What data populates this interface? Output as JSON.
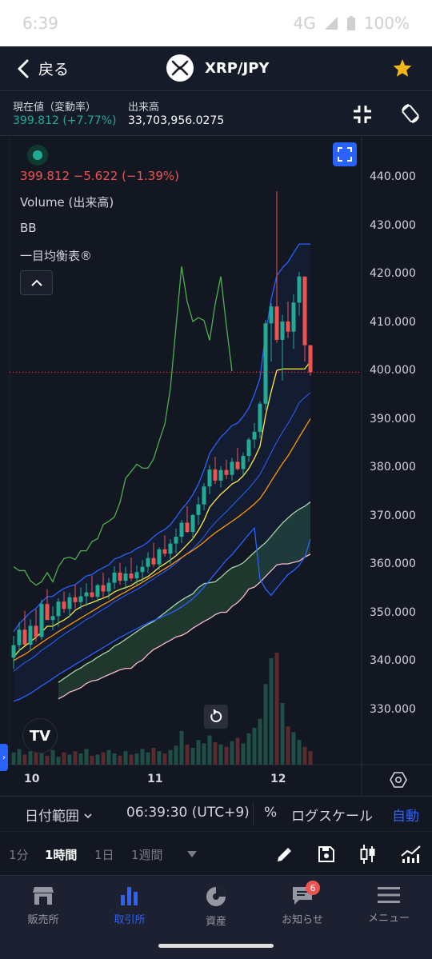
{
  "status_bar": {
    "time": "6:39",
    "network": "4G",
    "battery": "100%"
  },
  "header": {
    "back_label": "戻る",
    "pair": "XRP/JPY",
    "favorite": true
  },
  "info": {
    "price_label": "現在値（変動率）",
    "price_value": "399.812 (+7.77%)",
    "volume_label": "出来高",
    "volume_value": "33,703,956.0275"
  },
  "legend": {
    "price_change": "399.812  −5.622 (−1.39%)",
    "volume": "Volume (出来高)",
    "bb": "BB",
    "ichimoku": "一目均衡表®"
  },
  "chart_data": {
    "type": "candlestick",
    "symbol": "XRP/JPY",
    "interval": "1時間",
    "last_price": 399.812,
    "ylim": [
      323,
      446
    ],
    "yticks": [
      "440.000",
      "430.000",
      "420.000",
      "410.000",
      "400.000",
      "390.000",
      "380.000",
      "370.000",
      "360.000",
      "350.000",
      "340.000",
      "330.000"
    ],
    "x_labels": [
      "10",
      "11",
      "12"
    ],
    "colors": {
      "up": "#22ab94",
      "down": "#ef5350",
      "bb_band": "#2962ff",
      "ma": "#ff9800",
      "tenkan": "#ffeb3b",
      "chikou": "#4caf50",
      "span_a": "#a5d6a7",
      "span_b": "#f8bbd0"
    },
    "candles": [
      [
        340.8,
        345.3,
        338.5,
        343.4
      ],
      [
        343.4,
        348.1,
        341.9,
        346.6
      ],
      [
        346.6,
        350.5,
        343.3,
        343.5
      ],
      [
        343.5,
        348.7,
        342.2,
        347.4
      ],
      [
        347.4,
        350.8,
        344.1,
        345.1
      ],
      [
        345.1,
        352.8,
        344.5,
        351.9
      ],
      [
        351.9,
        355.0,
        348.6,
        348.6
      ],
      [
        348.6,
        351.4,
        346.5,
        349.4
      ],
      [
        349.4,
        353.1,
        347.2,
        352.4
      ],
      [
        352.4,
        354.5,
        350.1,
        350.9
      ],
      [
        350.9,
        354.2,
        349.2,
        353.3
      ],
      [
        353.3,
        355.9,
        351.0,
        352.3
      ],
      [
        352.3,
        355.3,
        350.8,
        353.5
      ],
      [
        353.5,
        356.2,
        351.5,
        354.3
      ],
      [
        354.3,
        357.8,
        353.1,
        353.4
      ],
      [
        353.4,
        356.1,
        352.3,
        355.8
      ],
      [
        355.8,
        358.4,
        353.1,
        354.5
      ],
      [
        354.5,
        357.3,
        352.9,
        356.3
      ],
      [
        356.3,
        359.7,
        355.0,
        358.4
      ],
      [
        358.4,
        360.4,
        355.9,
        356.7
      ],
      [
        356.7,
        359.6,
        354.9,
        358.2
      ],
      [
        358.2,
        361.5,
        356.6,
        357.2
      ],
      [
        357.2,
        359.9,
        355.8,
        358.5
      ],
      [
        358.5,
        361.0,
        356.4,
        359.6
      ],
      [
        359.6,
        362.6,
        358.3,
        361.4
      ],
      [
        361.4,
        364.5,
        359.5,
        360.1
      ],
      [
        360.1,
        363.6,
        359.0,
        363.2
      ],
      [
        363.2,
        366.1,
        361.7,
        362.3
      ],
      [
        362.3,
        365.3,
        360.2,
        364.4
      ],
      [
        364.4,
        367.5,
        362.4,
        365.8
      ],
      [
        365.8,
        369.3,
        364.5,
        368.7
      ],
      [
        368.7,
        372.1,
        366.6,
        366.8
      ],
      [
        366.8,
        370.5,
        365.3,
        370.3
      ],
      [
        370.3,
        374.1,
        368.3,
        372.5
      ],
      [
        372.5,
        376.9,
        371.3,
        376.2
      ],
      [
        376.2,
        380.6,
        374.6,
        379.7
      ],
      [
        379.7,
        382.3,
        376.7,
        377.4
      ],
      [
        377.4,
        380.4,
        376.0,
        379.6
      ],
      [
        379.6,
        381.7,
        377.7,
        378.6
      ],
      [
        378.6,
        382.1,
        377.4,
        381.3
      ],
      [
        381.3,
        384.2,
        379.5,
        379.8
      ],
      [
        379.8,
        383.2,
        378.4,
        382.5
      ],
      [
        382.5,
        386.3,
        381.3,
        385.9
      ],
      [
        385.9,
        389.3,
        384.1,
        387.5
      ],
      [
        387.5,
        393.8,
        386.1,
        393.3
      ],
      [
        393.3,
        410.6,
        392.0,
        409.9
      ],
      [
        409.9,
        414.1,
        402.0,
        413.4
      ],
      [
        413.4,
        437.2,
        405.9,
        406.5
      ],
      [
        406.5,
        411.7,
        398.1,
        410.3
      ],
      [
        410.3,
        414.4,
        406.9,
        408.2
      ],
      [
        408.2,
        415.9,
        404.6,
        414.2
      ],
      [
        414.2,
        420.5,
        411.5,
        419.6
      ],
      [
        419.6,
        419.6,
        402.0,
        405.4
      ],
      [
        405.4,
        405.4,
        399.1,
        399.8
      ]
    ],
    "bb_upper": [
      346.2,
      347.8,
      349.0,
      350.2,
      351.0,
      352.3,
      353.4,
      353.5,
      354.4,
      355.1,
      355.6,
      355.9,
      356.8,
      357.7,
      358.0,
      358.8,
      359.4,
      360.0,
      361.2,
      361.6,
      362.2,
      362.6,
      363.4,
      363.9,
      364.7,
      365.8,
      366.7,
      367.3,
      368.3,
      369.8,
      371.5,
      372.8,
      374.5,
      376.7,
      379.6,
      383.0,
      384.8,
      386.4,
      387.5,
      388.8,
      389.3,
      390.7,
      392.4,
      395.2,
      398.6,
      407.7,
      414.9,
      419.8,
      421.4,
      422.6,
      424.5,
      426.3,
      426.3,
      426.3
    ],
    "bb_basis": [
      338.0,
      338.9,
      339.8,
      340.5,
      341.3,
      342.3,
      343.1,
      343.9,
      344.8,
      345.6,
      346.4,
      347.1,
      347.9,
      348.7,
      349.3,
      350.1,
      350.8,
      351.5,
      352.4,
      353.0,
      353.7,
      354.3,
      354.9,
      355.6,
      356.4,
      357.1,
      357.9,
      358.6,
      359.4,
      360.3,
      361.4,
      362.3,
      363.3,
      364.5,
      365.8,
      367.4,
      368.7,
      369.9,
      371.0,
      372.2,
      373.4,
      374.6,
      375.8,
      377.2,
      378.7,
      380.9,
      383.2,
      385.4,
      387.4,
      389.2,
      391.2,
      393.5,
      394.6,
      395.6
    ],
    "bb_lower": [
      331.8,
      332.2,
      332.8,
      333.4,
      334.2,
      335.0,
      335.7,
      336.5,
      337.3,
      338.0,
      338.7,
      339.4,
      340.1,
      340.8,
      341.5,
      342.2,
      342.9,
      343.6,
      344.3,
      345.0,
      345.6,
      346.2,
      346.8,
      347.4,
      348.0,
      348.5,
      349.0,
      349.5,
      350.0,
      350.6,
      351.3,
      352.1,
      353.0,
      354.1,
      355.4,
      356.8,
      358.2,
      359.6,
      361.0,
      362.1,
      363.5,
      364.9,
      366.3,
      367.6,
      357.0,
      355.0,
      353.7,
      355.2,
      356.6,
      358.0,
      358.8,
      359.9,
      361.6,
      365.3
    ],
    "ma_line": [
      340.2,
      340.9,
      341.5,
      342.3,
      343.1,
      343.9,
      344.7,
      345.4,
      346.2,
      346.9,
      347.6,
      348.3,
      349.0,
      349.7,
      350.4,
      351.1,
      351.8,
      352.4,
      353.1,
      353.8,
      354.4,
      355.1,
      355.7,
      356.4,
      357.1,
      357.8,
      358.5,
      359.2,
      359.9,
      360.7,
      361.5,
      362.3,
      363.0,
      363.8,
      364.7,
      365.7,
      366.6,
      367.4,
      368.2,
      369.0,
      369.8,
      370.7,
      371.6,
      372.6,
      373.7,
      375.4,
      377.3,
      379.1,
      380.9,
      382.5,
      384.4,
      386.4,
      388.3,
      390.2
    ],
    "tenkan": [
      340.9,
      342.3,
      343.2,
      344.1,
      345.0,
      346.1,
      347.3,
      347.3,
      348.0,
      348.6,
      349.4,
      350.6,
      351.3,
      351.8,
      352.2,
      352.7,
      353.1,
      353.6,
      354.4,
      354.9,
      355.3,
      355.7,
      356.5,
      357.0,
      357.6,
      358.5,
      359.5,
      360.2,
      361.0,
      361.9,
      363.0,
      364.2,
      365.4,
      367.1,
      369.2,
      371.9,
      373.3,
      374.6,
      375.6,
      376.7,
      377.3,
      378.4,
      379.9,
      382.0,
      384.5,
      390.9,
      395.8,
      400.2,
      400.5,
      400.5,
      400.5,
      400.5,
      400.5,
      402.0
    ],
    "chikou": [
      359.6,
      358.8,
      358.8,
      356.7,
      355.8,
      356.5,
      358.4,
      356.5,
      359.6,
      361.3,
      361.6,
      361.1,
      362.9,
      362.9,
      364.8,
      365.4,
      368.3,
      369.0,
      369.9,
      372.9,
      377.9,
      379.3,
      380.8,
      380.0,
      380.0,
      381.9,
      385.6,
      389.1,
      396.5,
      409.2,
      421.7,
      414.4,
      410.3,
      411.1,
      410.5,
      406.4,
      413.9,
      419.6,
      409.4,
      400.0
    ],
    "span_a": [
      335.7,
      336.5,
      337.3,
      338.1,
      338.7,
      339.5,
      340.1,
      340.9,
      341.6,
      342.2,
      343.2,
      343.8,
      344.6,
      345.4,
      346.2,
      347.0,
      347.7,
      348.3,
      349.2,
      350.1,
      351.0,
      351.9,
      352.7,
      353.4,
      354.0,
      355.3,
      356.1,
      356.3,
      356.5,
      357.4,
      358.5,
      359.4,
      359.8,
      360.4,
      361.5,
      362.6,
      363.6,
      364.6,
      365.9,
      367.3,
      368.6,
      369.7,
      370.7,
      371.5,
      372.1,
      373.0
    ],
    "span_b": [
      332.3,
      332.9,
      333.7,
      334.1,
      334.6,
      335.5,
      336.0,
      336.2,
      336.8,
      337.3,
      337.8,
      338.3,
      338.6,
      338.6,
      339.7,
      340.3,
      341.5,
      342.5,
      343.1,
      343.8,
      344.4,
      345.1,
      345.4,
      346.0,
      346.9,
      347.6,
      348.3,
      348.9,
      349.7,
      350.2,
      350.2,
      351.4,
      352.2,
      353.4,
      355.0,
      355.4,
      356.4,
      357.6,
      358.8,
      360.0,
      360.2,
      360.2,
      360.5,
      360.8,
      361.6,
      362.2
    ],
    "volume": [
      0.11,
      0.14,
      0.09,
      0.12,
      0.16,
      0.1,
      0.08,
      0.13,
      0.07,
      0.11,
      0.09,
      0.12,
      0.1,
      0.14,
      0.08,
      0.09,
      0.11,
      0.13,
      0.1,
      0.08,
      0.12,
      0.09,
      0.1,
      0.14,
      0.11,
      0.15,
      0.12,
      0.1,
      0.13,
      0.17,
      0.3,
      0.18,
      0.15,
      0.22,
      0.19,
      0.26,
      0.2,
      0.18,
      0.16,
      0.21,
      0.24,
      0.19,
      0.28,
      0.33,
      0.41,
      0.72,
      0.95,
      1.0,
      0.55,
      0.34,
      0.29,
      0.22,
      0.16,
      0.12
    ]
  },
  "range_bar": {
    "date_range": "日付範囲",
    "time": "06:39:30 (UTC+9)",
    "percent": "%",
    "log_scale": "ログスケール",
    "auto": "自動"
  },
  "intervals": [
    {
      "label": "1分",
      "active": false
    },
    {
      "label": "1時間",
      "active": true
    },
    {
      "label": "1日",
      "active": false
    },
    {
      "label": "1週間",
      "active": false
    }
  ],
  "nav": [
    {
      "label": "販売所",
      "active": false,
      "icon": "shop-icon"
    },
    {
      "label": "取引所",
      "active": true,
      "icon": "bar-chart-icon"
    },
    {
      "label": "資産",
      "active": false,
      "icon": "pie-chart-icon"
    },
    {
      "label": "お知らせ",
      "active": false,
      "icon": "message-icon",
      "badge": "6"
    },
    {
      "label": "メニュー",
      "active": false,
      "icon": "hamburger-menu-icon"
    }
  ]
}
